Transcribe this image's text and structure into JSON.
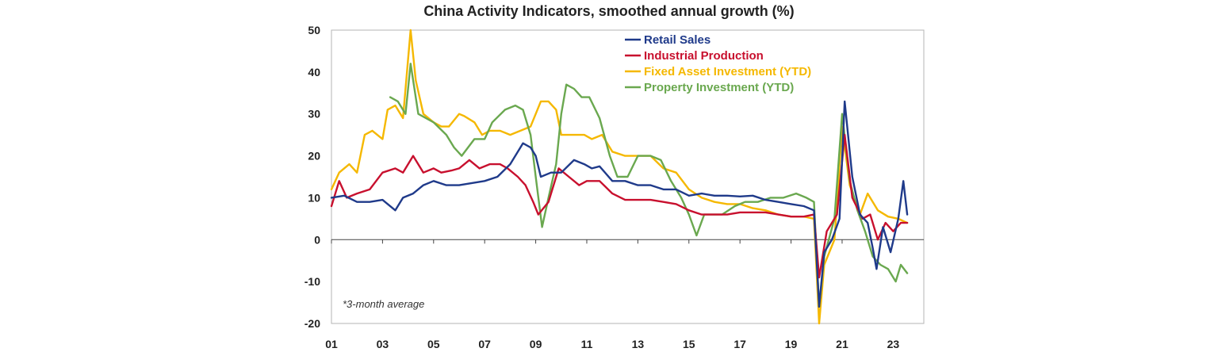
{
  "chart_data": {
    "type": "line",
    "title": "China Activity Indicators, smoothed annual growth (%)",
    "note": "*3-month average",
    "ylim": [
      -20,
      50
    ],
    "yticks": [
      "50",
      "40",
      "30",
      "20",
      "10",
      "0",
      "-10",
      "-20"
    ],
    "xlim": [
      2001,
      2024.2
    ],
    "xticks": [
      "01",
      "03",
      "05",
      "07",
      "09",
      "11",
      "13",
      "15",
      "17",
      "19",
      "21",
      "23"
    ],
    "legend_position": "top-right",
    "series": [
      {
        "name": "Retail Sales",
        "color": "#1f3a8a",
        "points": [
          [
            2001.0,
            10
          ],
          [
            2001.5,
            10.5
          ],
          [
            2002.0,
            9
          ],
          [
            2002.5,
            9
          ],
          [
            2003.0,
            9.5
          ],
          [
            2003.5,
            7
          ],
          [
            2003.8,
            10
          ],
          [
            2004.2,
            11
          ],
          [
            2004.6,
            13
          ],
          [
            2005.0,
            14
          ],
          [
            2005.5,
            13
          ],
          [
            2006.0,
            13
          ],
          [
            2006.5,
            13.5
          ],
          [
            2007.0,
            14
          ],
          [
            2007.5,
            15
          ],
          [
            2008.0,
            18
          ],
          [
            2008.5,
            23
          ],
          [
            2008.8,
            22
          ],
          [
            2009.0,
            20
          ],
          [
            2009.2,
            15
          ],
          [
            2009.6,
            16
          ],
          [
            2010.0,
            16
          ],
          [
            2010.5,
            19
          ],
          [
            2010.9,
            18
          ],
          [
            2011.2,
            17
          ],
          [
            2011.5,
            17.5
          ],
          [
            2012.0,
            14
          ],
          [
            2012.5,
            14
          ],
          [
            2013.0,
            13
          ],
          [
            2013.5,
            13
          ],
          [
            2014.0,
            12
          ],
          [
            2014.5,
            12
          ],
          [
            2015.0,
            10.5
          ],
          [
            2015.5,
            11
          ],
          [
            2016.0,
            10.5
          ],
          [
            2016.5,
            10.5
          ],
          [
            2017.0,
            10.3
          ],
          [
            2017.5,
            10.5
          ],
          [
            2018.0,
            9.5
          ],
          [
            2018.5,
            9
          ],
          [
            2019.0,
            8.5
          ],
          [
            2019.5,
            8
          ],
          [
            2019.9,
            7
          ],
          [
            2020.1,
            -16
          ],
          [
            2020.3,
            -3
          ],
          [
            2020.6,
            0
          ],
          [
            2020.9,
            5
          ],
          [
            2021.1,
            33
          ],
          [
            2021.4,
            15
          ],
          [
            2021.7,
            6
          ],
          [
            2022.0,
            4
          ],
          [
            2022.2,
            -2
          ],
          [
            2022.35,
            -7
          ],
          [
            2022.6,
            3
          ],
          [
            2022.9,
            -3
          ],
          [
            2023.2,
            5
          ],
          [
            2023.4,
            14
          ],
          [
            2023.55,
            6
          ]
        ]
      },
      {
        "name": "Industrial Production",
        "color": "#c8102e",
        "points": [
          [
            2001.0,
            8
          ],
          [
            2001.3,
            14
          ],
          [
            2001.6,
            10
          ],
          [
            2002.0,
            11
          ],
          [
            2002.5,
            12
          ],
          [
            2003.0,
            16
          ],
          [
            2003.5,
            17
          ],
          [
            2003.8,
            16
          ],
          [
            2004.2,
            20
          ],
          [
            2004.6,
            16
          ],
          [
            2005.0,
            17
          ],
          [
            2005.3,
            16
          ],
          [
            2005.7,
            16.5
          ],
          [
            2006.0,
            17
          ],
          [
            2006.4,
            19
          ],
          [
            2006.8,
            17
          ],
          [
            2007.2,
            18
          ],
          [
            2007.6,
            18
          ],
          [
            2007.9,
            17
          ],
          [
            2008.3,
            15
          ],
          [
            2008.6,
            13
          ],
          [
            2008.9,
            9
          ],
          [
            2009.1,
            6
          ],
          [
            2009.5,
            9
          ],
          [
            2009.9,
            17
          ],
          [
            2010.3,
            15
          ],
          [
            2010.7,
            13
          ],
          [
            2011.0,
            14
          ],
          [
            2011.5,
            14
          ],
          [
            2012.0,
            11
          ],
          [
            2012.5,
            9.5
          ],
          [
            2013.0,
            9.5
          ],
          [
            2013.5,
            9.5
          ],
          [
            2014.0,
            9
          ],
          [
            2014.5,
            8.5
          ],
          [
            2015.0,
            7
          ],
          [
            2015.5,
            6
          ],
          [
            2016.0,
            6
          ],
          [
            2016.5,
            6
          ],
          [
            2017.0,
            6.5
          ],
          [
            2017.5,
            6.5
          ],
          [
            2018.0,
            6.5
          ],
          [
            2018.5,
            6
          ],
          [
            2019.0,
            5.5
          ],
          [
            2019.5,
            5.5
          ],
          [
            2019.9,
            6
          ],
          [
            2020.1,
            -9
          ],
          [
            2020.4,
            2
          ],
          [
            2020.8,
            6
          ],
          [
            2021.1,
            25
          ],
          [
            2021.4,
            10
          ],
          [
            2021.8,
            5
          ],
          [
            2022.1,
            6
          ],
          [
            2022.4,
            0
          ],
          [
            2022.7,
            4
          ],
          [
            2023.0,
            2
          ],
          [
            2023.3,
            4
          ],
          [
            2023.55,
            4
          ]
        ]
      },
      {
        "name": "Fixed Asset Investment (YTD)",
        "color": "#f5b800",
        "points": [
          [
            2001.0,
            12
          ],
          [
            2001.3,
            16
          ],
          [
            2001.7,
            18
          ],
          [
            2002.0,
            16
          ],
          [
            2002.3,
            25
          ],
          [
            2002.6,
            26
          ],
          [
            2003.0,
            24
          ],
          [
            2003.2,
            31
          ],
          [
            2003.5,
            32
          ],
          [
            2003.8,
            29
          ],
          [
            2004.1,
            50
          ],
          [
            2004.3,
            38
          ],
          [
            2004.6,
            30
          ],
          [
            2005.0,
            28
          ],
          [
            2005.3,
            27
          ],
          [
            2005.6,
            27
          ],
          [
            2006.0,
            30
          ],
          [
            2006.2,
            29.5
          ],
          [
            2006.6,
            28
          ],
          [
            2006.9,
            25
          ],
          [
            2007.2,
            26
          ],
          [
            2007.6,
            26
          ],
          [
            2008.0,
            25
          ],
          [
            2008.4,
            26
          ],
          [
            2008.8,
            27
          ],
          [
            2009.0,
            30
          ],
          [
            2009.2,
            33
          ],
          [
            2009.5,
            33
          ],
          [
            2009.8,
            31
          ],
          [
            2010.0,
            25
          ],
          [
            2010.5,
            25
          ],
          [
            2010.9,
            25
          ],
          [
            2011.2,
            24
          ],
          [
            2011.6,
            25
          ],
          [
            2012.0,
            21
          ],
          [
            2012.5,
            20
          ],
          [
            2013.0,
            20
          ],
          [
            2013.5,
            20
          ],
          [
            2014.0,
            17
          ],
          [
            2014.5,
            16
          ],
          [
            2015.0,
            12
          ],
          [
            2015.5,
            10
          ],
          [
            2016.0,
            9
          ],
          [
            2016.5,
            8.5
          ],
          [
            2017.0,
            8.5
          ],
          [
            2017.5,
            7.5
          ],
          [
            2018.0,
            7
          ],
          [
            2018.5,
            6
          ],
          [
            2019.0,
            5.5
          ],
          [
            2019.5,
            5.5
          ],
          [
            2019.9,
            5
          ],
          [
            2020.1,
            -20
          ],
          [
            2020.3,
            -6
          ],
          [
            2020.7,
            0
          ],
          [
            2021.0,
            27
          ],
          [
            2021.3,
            13
          ],
          [
            2021.7,
            6
          ],
          [
            2022.0,
            11
          ],
          [
            2022.4,
            7
          ],
          [
            2022.8,
            5.5
          ],
          [
            2023.2,
            5
          ],
          [
            2023.55,
            4
          ]
        ]
      },
      {
        "name": "Property Investment (YTD)",
        "color": "#6aa84f",
        "points": [
          [
            2003.3,
            34
          ],
          [
            2003.6,
            33
          ],
          [
            2003.9,
            30
          ],
          [
            2004.1,
            42
          ],
          [
            2004.4,
            30
          ],
          [
            2004.7,
            29
          ],
          [
            2005.0,
            28
          ],
          [
            2005.5,
            25
          ],
          [
            2005.8,
            22
          ],
          [
            2006.1,
            20
          ],
          [
            2006.6,
            24
          ],
          [
            2007.0,
            24
          ],
          [
            2007.3,
            28
          ],
          [
            2007.8,
            31
          ],
          [
            2008.2,
            32
          ],
          [
            2008.5,
            31
          ],
          [
            2008.8,
            25
          ],
          [
            2009.0,
            15
          ],
          [
            2009.25,
            3
          ],
          [
            2009.5,
            10
          ],
          [
            2009.8,
            18
          ],
          [
            2010.0,
            30
          ],
          [
            2010.2,
            37
          ],
          [
            2010.5,
            36
          ],
          [
            2010.8,
            34
          ],
          [
            2011.1,
            34
          ],
          [
            2011.5,
            29
          ],
          [
            2011.9,
            20
          ],
          [
            2012.2,
            15
          ],
          [
            2012.6,
            15
          ],
          [
            2013.0,
            20
          ],
          [
            2013.5,
            20
          ],
          [
            2013.9,
            19
          ],
          [
            2014.3,
            14
          ],
          [
            2014.7,
            10
          ],
          [
            2015.0,
            6
          ],
          [
            2015.3,
            1
          ],
          [
            2015.6,
            6
          ],
          [
            2015.9,
            6
          ],
          [
            2016.3,
            6
          ],
          [
            2016.8,
            8
          ],
          [
            2017.2,
            9
          ],
          [
            2017.7,
            9
          ],
          [
            2018.2,
            10
          ],
          [
            2018.7,
            10
          ],
          [
            2019.2,
            11
          ],
          [
            2019.6,
            10
          ],
          [
            2019.9,
            9
          ],
          [
            2020.1,
            -16
          ],
          [
            2020.3,
            -4
          ],
          [
            2020.7,
            5
          ],
          [
            2021.0,
            30
          ],
          [
            2021.3,
            14
          ],
          [
            2021.6,
            7
          ],
          [
            2021.9,
            2
          ],
          [
            2022.2,
            -4
          ],
          [
            2022.5,
            -6
          ],
          [
            2022.8,
            -7
          ],
          [
            2023.1,
            -10
          ],
          [
            2023.3,
            -6
          ],
          [
            2023.55,
            -8
          ]
        ]
      }
    ]
  }
}
